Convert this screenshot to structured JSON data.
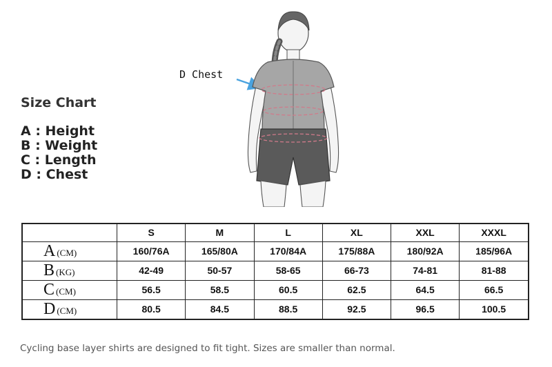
{
  "title": "Size Chart",
  "legend": [
    "A : Height",
    "B : Weight",
    "C : Length",
    "D : Chest"
  ],
  "callout": "D Chest",
  "table": {
    "headers": [
      "S",
      "M",
      "L",
      "XL",
      "XXL",
      "XXXL"
    ],
    "rows": [
      {
        "letter": "A",
        "unit": "(CM)",
        "values": [
          "160/76A",
          "165/80A",
          "170/84A",
          "175/88A",
          "180/92A",
          "185/96A"
        ]
      },
      {
        "letter": "B",
        "unit": "(KG)",
        "values": [
          "42-49",
          "50-57",
          "58-65",
          "66-73",
          "74-81",
          "81-88"
        ]
      },
      {
        "letter": "C",
        "unit": "(CM)",
        "values": [
          "56.5",
          "58.5",
          "60.5",
          "62.5",
          "64.5",
          "66.5"
        ]
      },
      {
        "letter": "D",
        "unit": "(CM)",
        "values": [
          "80.5",
          "84.5",
          "88.5",
          "92.5",
          "96.5",
          "100.5"
        ]
      }
    ]
  },
  "note": "Cycling base layer shirts are designed to fit tight. Sizes are smaller than normal.",
  "colors": {
    "arrow": "#4aa3df",
    "measure_lines": "#d07a8a",
    "shirt": "#a6a6a6",
    "shorts": "#5a5a5a",
    "skin": "#f4f4f4",
    "outline": "#555555"
  }
}
